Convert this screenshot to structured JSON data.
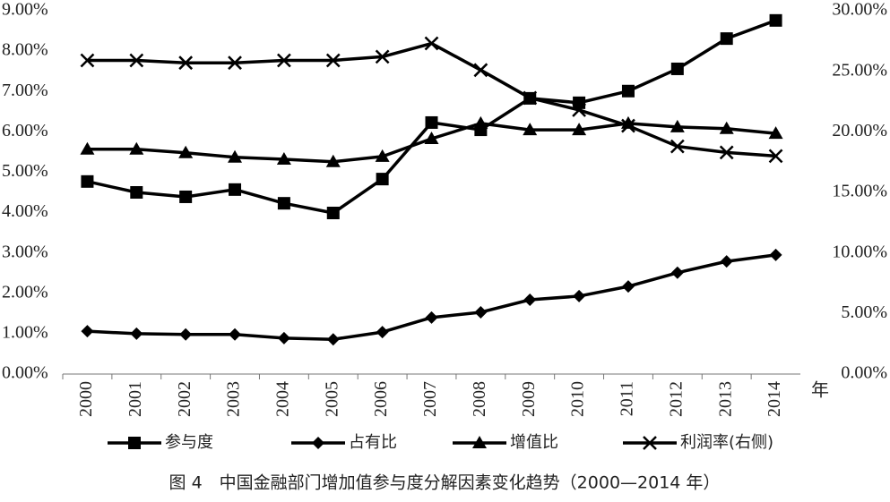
{
  "chart_data": {
    "type": "line",
    "title": "图 4　中国金融部门增加值参与度分解因素变化趋势（2000—2014 年）",
    "xlabel": "年",
    "categories": [
      "2000",
      "2001",
      "2002",
      "2003",
      "2004",
      "2005",
      "2006",
      "2007",
      "2008",
      "2009",
      "2010",
      "2011",
      "2012",
      "2013",
      "2014"
    ],
    "series": [
      {
        "name": "参与度",
        "color": "#000000",
        "marker": "square",
        "values": [
          4.77,
          4.5,
          4.39,
          4.57,
          4.23,
          3.99,
          4.83,
          6.23,
          6.05,
          6.83,
          6.72,
          7.01,
          7.56,
          8.31,
          8.76
        ]
      },
      {
        "name": "占有比",
        "color": "#000000",
        "marker": "diamond",
        "values": [
          1.06,
          1.0,
          0.98,
          0.98,
          0.89,
          0.86,
          1.04,
          1.4,
          1.53,
          1.84,
          1.93,
          2.17,
          2.51,
          2.79,
          2.95
        ]
      },
      {
        "name": "增值比",
        "color": "#000000",
        "marker": "triangle",
        "values": [
          5.57,
          5.57,
          5.48,
          5.37,
          5.32,
          5.26,
          5.39,
          5.83,
          6.21,
          6.05,
          6.05,
          6.21,
          6.12,
          6.08,
          5.96
        ]
      },
      {
        "name": "利润率(右侧)",
        "color": "#000000",
        "marker": "x",
        "axis": "y2",
        "values": [
          25.9,
          25.9,
          25.7,
          25.7,
          25.9,
          25.9,
          26.2,
          27.3,
          25.1,
          22.8,
          21.8,
          20.5,
          18.8,
          18.3,
          18.0
        ]
      }
    ],
    "ylim": [
      0,
      9
    ],
    "yticks": [
      {
        "value": 0,
        "label": "0.00%"
      },
      {
        "value": 1,
        "label": "1.00%"
      },
      {
        "value": 2,
        "label": "2.00%"
      },
      {
        "value": 3,
        "label": "3.00%"
      },
      {
        "value": 4,
        "label": "4.00%"
      },
      {
        "value": 5,
        "label": "5.00%"
      },
      {
        "value": 6,
        "label": "6.00%"
      },
      {
        "value": 7,
        "label": "7.00%"
      },
      {
        "value": 8,
        "label": "8.00%"
      },
      {
        "value": 9,
        "label": "9.00%"
      }
    ],
    "y2lim": [
      0,
      30
    ],
    "y2ticks": [
      {
        "value": 0,
        "label": "0.00%"
      },
      {
        "value": 5,
        "label": "5.00%"
      },
      {
        "value": 10,
        "label": "10.00%"
      },
      {
        "value": 15,
        "label": "15.00%"
      },
      {
        "value": 20,
        "label": "20.00%"
      },
      {
        "value": 25,
        "label": "25.00%"
      },
      {
        "value": 30,
        "label": "30.00%"
      }
    ],
    "grid": false
  }
}
